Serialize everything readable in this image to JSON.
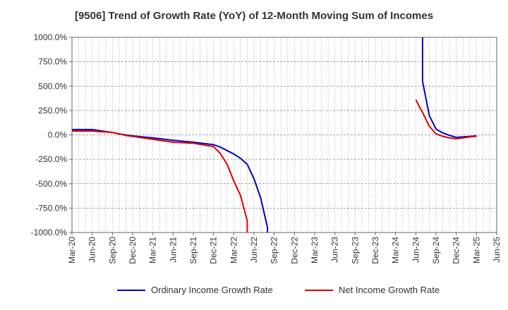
{
  "chart_data": {
    "type": "line",
    "title": "[9506]  Trend of Growth Rate (YoY) of 12-Month Moving Sum of Incomes",
    "xlabel": "",
    "ylabel": "",
    "y_unit": "%",
    "ylim": [
      -1000,
      1000
    ],
    "y_ticks": [
      1000,
      750,
      500,
      250,
      0,
      -250,
      -500,
      -750,
      -1000
    ],
    "y_tick_labels": [
      "1000.0%",
      "750.0%",
      "500.0%",
      "250.0%",
      "0.0%",
      "-250.0%",
      "-500.0%",
      "-750.0%",
      "-1000.0%"
    ],
    "x_tick_labels": [
      "Mar-20",
      "Jun-20",
      "Sep-20",
      "Dec-20",
      "Mar-21",
      "Jun-21",
      "Sep-21",
      "Dec-21",
      "Mar-22",
      "Jun-22",
      "Sep-22",
      "Dec-22",
      "Mar-23",
      "Jun-23",
      "Sep-23",
      "Dec-23",
      "Mar-24",
      "Jun-24",
      "Sep-24",
      "Dec-24",
      "Mar-25",
      "Jun-25"
    ],
    "x_range": [
      "Mar-20",
      "Jun-25"
    ],
    "grid": true,
    "legend_position": "bottom",
    "series": [
      {
        "name": "Ordinary Income Growth Rate",
        "color": "#0000cc",
        "points": [
          [
            "Mar-20",
            55
          ],
          [
            "Apr-20",
            55
          ],
          [
            "May-20",
            55
          ],
          [
            "Jun-20",
            55
          ],
          [
            "Jul-20",
            45
          ],
          [
            "Aug-20",
            35
          ],
          [
            "Sep-20",
            25
          ],
          [
            "Oct-20",
            10
          ],
          [
            "Nov-20",
            0
          ],
          [
            "Dec-20",
            -10
          ],
          [
            "Mar-21",
            -30
          ],
          [
            "Jun-21",
            -55
          ],
          [
            "Sep-21",
            -75
          ],
          [
            "Dec-21",
            -100
          ],
          [
            "Jan-22",
            -125
          ],
          [
            "Feb-22",
            -160
          ],
          [
            "Mar-22",
            -195
          ],
          [
            "Apr-22",
            -240
          ],
          [
            "May-22",
            -300
          ],
          [
            "Jun-22",
            -450
          ],
          [
            "Jul-22",
            -650
          ],
          [
            "Aug-22",
            -950
          ],
          [
            "Aug-22",
            -1050
          ],
          null,
          [
            "Jul-24",
            1050
          ],
          [
            "Jul-24",
            550
          ],
          [
            "Aug-24",
            200
          ],
          [
            "Sep-24",
            60
          ],
          [
            "Oct-24",
            20
          ],
          [
            "Nov-24",
            -5
          ],
          [
            "Dec-24",
            -25
          ],
          [
            "Jan-25",
            -20
          ],
          [
            "Feb-25",
            -15
          ],
          [
            "Mar-25",
            -10
          ]
        ]
      },
      {
        "name": "Net Income Growth Rate",
        "color": "#dd0000",
        "points": [
          [
            "Mar-20",
            40
          ],
          [
            "Jun-20",
            40
          ],
          [
            "Jul-20",
            35
          ],
          [
            "Aug-20",
            30
          ],
          [
            "Sep-20",
            25
          ],
          [
            "Oct-20",
            10
          ],
          [
            "Nov-20",
            -5
          ],
          [
            "Dec-20",
            -15
          ],
          [
            "Mar-21",
            -45
          ],
          [
            "Jun-21",
            -75
          ],
          [
            "Sep-21",
            -85
          ],
          [
            "Dec-21",
            -120
          ],
          [
            "Jan-22",
            -190
          ],
          [
            "Feb-22",
            -300
          ],
          [
            "Mar-22",
            -470
          ],
          [
            "Apr-22",
            -620
          ],
          [
            "May-22",
            -880
          ],
          [
            "May-22",
            -1050
          ],
          null,
          [
            "Jun-24",
            360
          ],
          [
            "Jul-24",
            230
          ],
          [
            "Aug-24",
            90
          ],
          [
            "Sep-24",
            10
          ],
          [
            "Oct-24",
            -15
          ],
          [
            "Nov-24",
            -30
          ],
          [
            "Dec-24",
            -40
          ],
          [
            "Jan-25",
            -30
          ],
          [
            "Feb-25",
            -20
          ],
          [
            "Mar-25",
            -15
          ]
        ]
      }
    ]
  }
}
